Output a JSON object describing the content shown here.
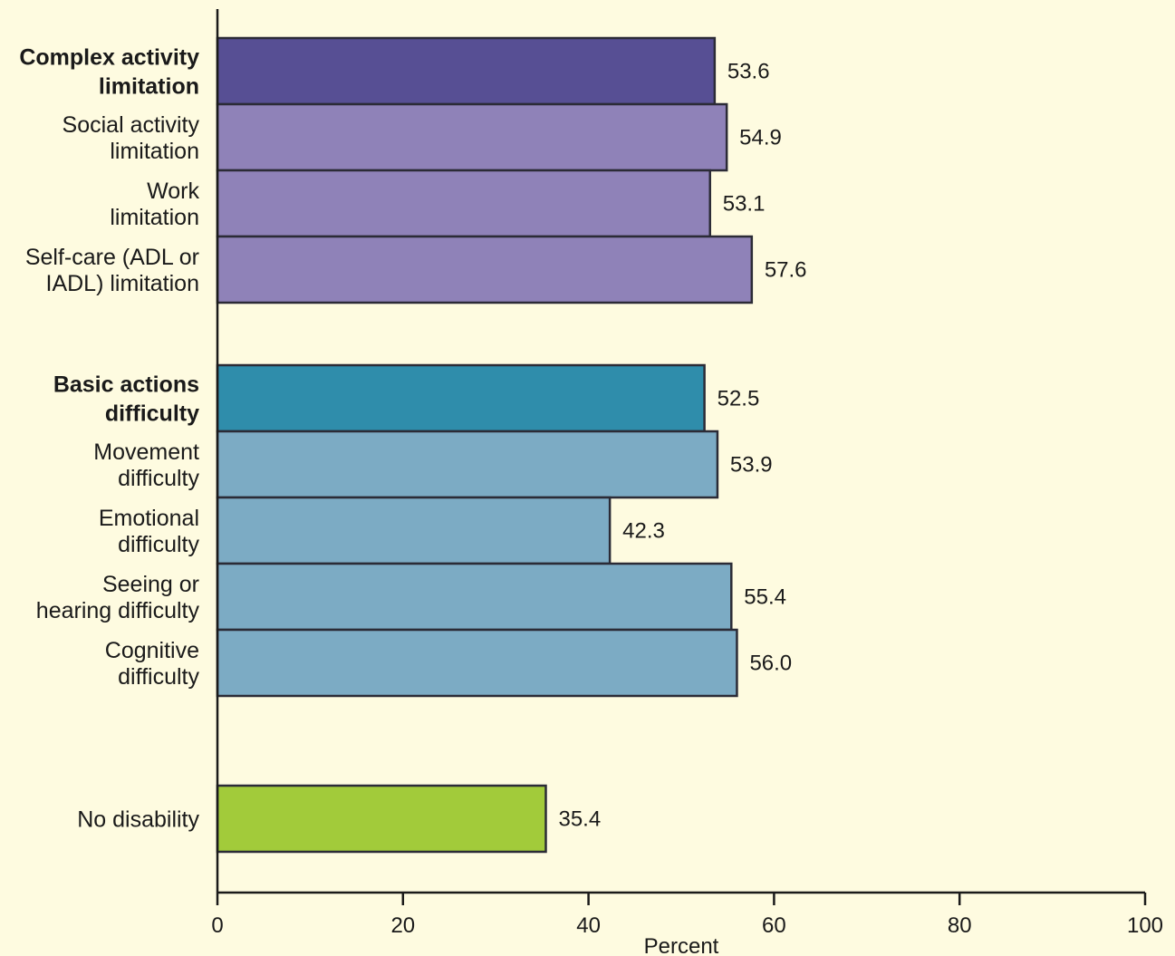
{
  "chart_data": {
    "type": "bar",
    "orientation": "horizontal",
    "title": "",
    "xlabel": "Percent",
    "ylabel": "",
    "xlim": [
      0,
      100
    ],
    "xticks": [
      0,
      20,
      40,
      60,
      80,
      100
    ],
    "grid": false,
    "categories": [
      {
        "lines": [
          "Complex activity",
          "limitation"
        ],
        "value": 53.6,
        "value_label": "53.6",
        "bold": true,
        "color": "#574f94",
        "group": 0
      },
      {
        "lines": [
          "Social activity",
          "limitation"
        ],
        "value": 54.9,
        "value_label": "54.9",
        "bold": false,
        "color": "#8f82b8",
        "group": 0
      },
      {
        "lines": [
          "Work",
          "limitation"
        ],
        "value": 53.1,
        "value_label": "53.1",
        "bold": false,
        "color": "#8f82b8",
        "group": 0
      },
      {
        "lines": [
          "Self-care (ADL or",
          "IADL) limitation"
        ],
        "value": 57.6,
        "value_label": "57.6",
        "bold": false,
        "color": "#8f82b8",
        "group": 0
      },
      {
        "lines": [
          "Basic actions",
          "difficulty"
        ],
        "value": 52.5,
        "value_label": "52.5",
        "bold": true,
        "color": "#2f8dab",
        "group": 1
      },
      {
        "lines": [
          "Movement",
          "difficulty"
        ],
        "value": 53.9,
        "value_label": "53.9",
        "bold": false,
        "color": "#7cabc4",
        "group": 1
      },
      {
        "lines": [
          "Emotional",
          "difficulty"
        ],
        "value": 42.3,
        "value_label": "42.3",
        "bold": false,
        "color": "#7cabc4",
        "group": 1
      },
      {
        "lines": [
          "Seeing or",
          "hearing difficulty"
        ],
        "value": 55.4,
        "value_label": "55.4",
        "bold": false,
        "color": "#7cabc4",
        "group": 1
      },
      {
        "lines": [
          "Cognitive",
          "difficulty"
        ],
        "value": 56.0,
        "value_label": "56.0",
        "bold": false,
        "color": "#7cabc4",
        "group": 1
      },
      {
        "lines": [
          "No disability"
        ],
        "value": 35.4,
        "value_label": "35.4",
        "bold": false,
        "color": "#a2cb3a",
        "group": 2
      }
    ]
  },
  "colors": {
    "background": "#fefbe0",
    "bar_outline": "#2b2b36",
    "axis": "#1a1a1a",
    "complex_activity": "#574f94",
    "complex_activity_sub": "#8f82b8",
    "basic_actions": "#2f8dab",
    "basic_actions_sub": "#7cabc4",
    "no_disability": "#a2cb3a"
  }
}
